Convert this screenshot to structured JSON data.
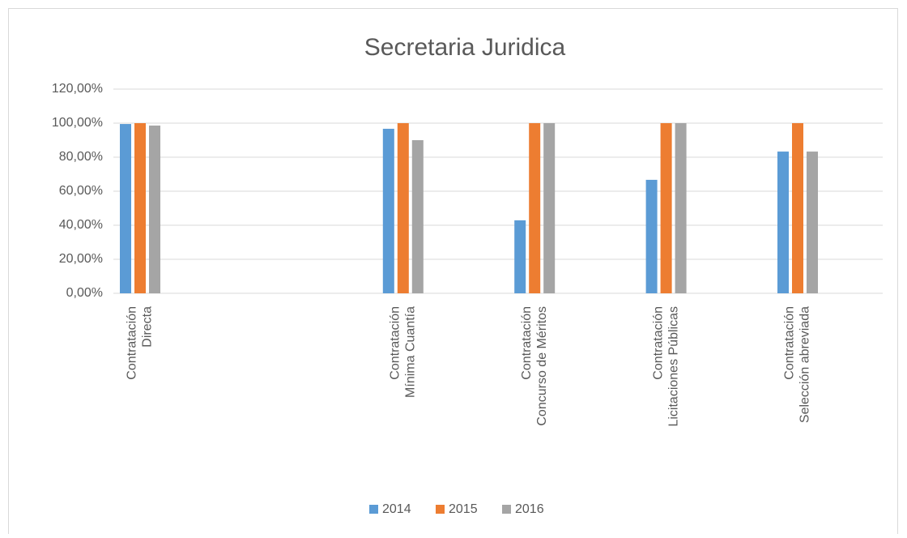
{
  "chart_data": {
    "type": "bar",
    "title": "Secretaria Juridica",
    "categories": [
      [
        "Contratación",
        "Directa"
      ],
      null,
      [
        "Contratación",
        "Mínima Cuantía"
      ],
      [
        "Contratación",
        "Concurso de Méritos"
      ],
      [
        "Contratación",
        "Licitaciones Públicas"
      ],
      [
        "Contratación",
        "Selección abreviada"
      ]
    ],
    "series": [
      {
        "name": "2014",
        "color": "#5b9bd5",
        "values": [
          99.5,
          null,
          96.7,
          42.9,
          66.7,
          83.3
        ]
      },
      {
        "name": "2015",
        "color": "#ed7d31",
        "values": [
          100,
          null,
          100,
          100,
          100,
          100
        ]
      },
      {
        "name": "2016",
        "color": "#a5a5a5",
        "values": [
          98.6,
          null,
          90,
          100,
          100,
          83.3
        ]
      }
    ],
    "ylim": [
      0,
      120
    ],
    "yticks": [
      {
        "value": 0,
        "label": "0,00%"
      },
      {
        "value": 20,
        "label": "20,00%"
      },
      {
        "value": 40,
        "label": "40,00%"
      },
      {
        "value": 60,
        "label": "60,00%"
      },
      {
        "value": 80,
        "label": "80,00%"
      },
      {
        "value": 100,
        "label": "100,00%"
      },
      {
        "value": 120,
        "label": "120,00%"
      }
    ],
    "grid": true,
    "legend": "bottom"
  }
}
